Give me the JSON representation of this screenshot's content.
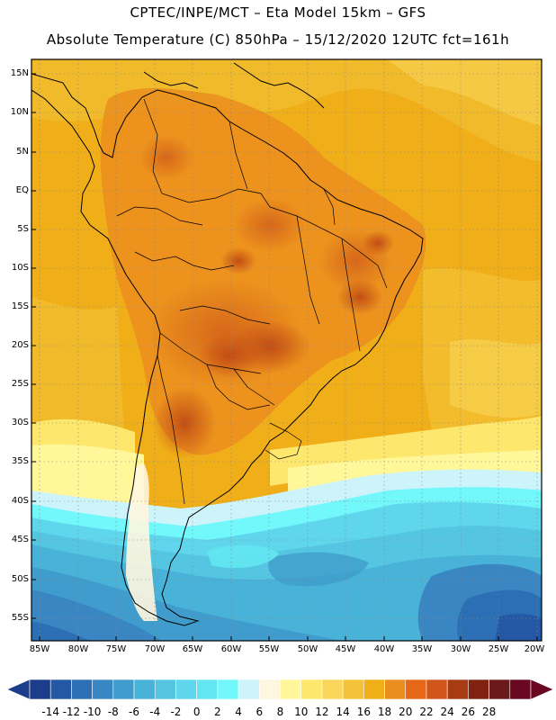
{
  "header": {
    "line1": "CPTEC/INPE/MCT –  Eta Model 15km – GFS",
    "line2": "Absolute Temperature (C) 850hPa – 15/12/2020 12UTC fct=161h"
  },
  "map": {
    "variable": "Absolute Temperature (C) 850hPa",
    "region": "South America",
    "lat_labels": [
      "15N",
      "10N",
      "5N",
      "EQ",
      "5S",
      "10S",
      "15S",
      "20S",
      "25S",
      "30S",
      "35S",
      "40S",
      "45S",
      "50S",
      "55S"
    ],
    "lon_labels": [
      "85W",
      "80W",
      "75W",
      "70W",
      "65W",
      "60W",
      "55W",
      "50W",
      "45W",
      "40W",
      "35W",
      "30W",
      "25W",
      "20W"
    ]
  },
  "colorbar": {
    "labels": [
      "-14",
      "-12",
      "-10",
      "-8",
      "-6",
      "-4",
      "-2",
      "0",
      "2",
      "4",
      "6",
      "8",
      "10",
      "12",
      "14",
      "16",
      "18",
      "20",
      "22",
      "24",
      "26",
      "28"
    ],
    "colors": [
      "#1c3c8c",
      "#2458a4",
      "#2d6fb4",
      "#3a86c2",
      "#3f9ccc",
      "#49b2d8",
      "#54c6e2",
      "#5fd6ec",
      "#63e6f2",
      "#72f7fb",
      "#cdf4fb",
      "#fff6df",
      "#fff79a",
      "#fde86d",
      "#fad75b",
      "#f3c43a",
      "#f0ae19",
      "#eb8d1f",
      "#e66718",
      "#d2561c",
      "#a73b12",
      "#7f2310",
      "#6b1a1b",
      "#6a0821"
    ],
    "under_color": "#1c3c8c",
    "over_color": "#6a0821"
  }
}
